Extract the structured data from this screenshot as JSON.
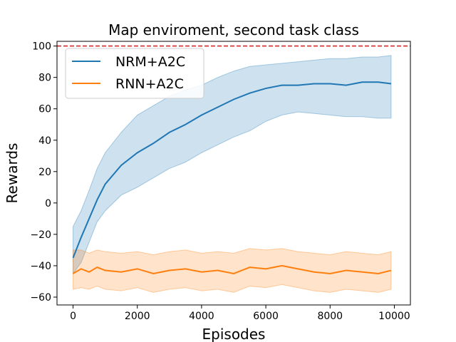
{
  "chart_data": {
    "type": "line",
    "title": "Map enviroment, second task class",
    "xlabel": "Episodes",
    "ylabel": "Rewards",
    "xlim": [
      -500,
      10500
    ],
    "ylim": [
      -65,
      103
    ],
    "xticks": [
      0,
      2000,
      4000,
      6000,
      8000,
      10000
    ],
    "yticks": [
      -60,
      -40,
      -20,
      0,
      20,
      40,
      60,
      80,
      100
    ],
    "grid": false,
    "legend_position": "upper-left",
    "reference_line": {
      "y": 100,
      "color": "#d62728",
      "style": "dashed"
    },
    "series": [
      {
        "name": "NRM+A2C",
        "color": "#1f77b4",
        "x": [
          0,
          250,
          500,
          750,
          1000,
          1500,
          2000,
          2500,
          3000,
          3500,
          4000,
          4500,
          5000,
          5500,
          6000,
          6500,
          7000,
          7500,
          8000,
          8500,
          9000,
          9500,
          9900
        ],
        "mean": [
          -35,
          -22,
          -10,
          2,
          12,
          24,
          32,
          38,
          45,
          50,
          56,
          61,
          66,
          70,
          73,
          75,
          75,
          76,
          76,
          75,
          77,
          77,
          76
        ],
        "upper": [
          -15,
          -5,
          8,
          22,
          32,
          45,
          56,
          62,
          68,
          72,
          75,
          80,
          84,
          87,
          88,
          89,
          90,
          91,
          92,
          92,
          93,
          93,
          94
        ],
        "lower": [
          -45,
          -38,
          -25,
          -12,
          -5,
          5,
          10,
          16,
          22,
          26,
          32,
          37,
          42,
          46,
          52,
          56,
          58,
          57,
          56,
          55,
          55,
          54,
          54
        ]
      },
      {
        "name": "RNN+A2C",
        "color": "#ff7f0e",
        "x": [
          0,
          250,
          500,
          750,
          1000,
          1500,
          2000,
          2500,
          3000,
          3500,
          4000,
          4500,
          5000,
          5500,
          6000,
          6500,
          7000,
          7500,
          8000,
          8500,
          9000,
          9500,
          9900
        ],
        "mean": [
          -45,
          -42,
          -44,
          -41,
          -43,
          -44,
          -42,
          -45,
          -43,
          -42,
          -44,
          -43,
          -45,
          -41,
          -42,
          -40,
          -42,
          -44,
          -45,
          -43,
          -44,
          -45,
          -43
        ],
        "upper": [
          -30,
          -30,
          -32,
          -30,
          -31,
          -32,
          -31,
          -33,
          -31,
          -30,
          -32,
          -31,
          -32,
          -29,
          -30,
          -29,
          -31,
          -32,
          -33,
          -31,
          -32,
          -33,
          -31
        ],
        "lower": [
          -55,
          -54,
          -55,
          -53,
          -55,
          -56,
          -54,
          -57,
          -55,
          -54,
          -56,
          -55,
          -57,
          -53,
          -54,
          -52,
          -54,
          -56,
          -57,
          -55,
          -56,
          -57,
          -55
        ]
      }
    ]
  }
}
